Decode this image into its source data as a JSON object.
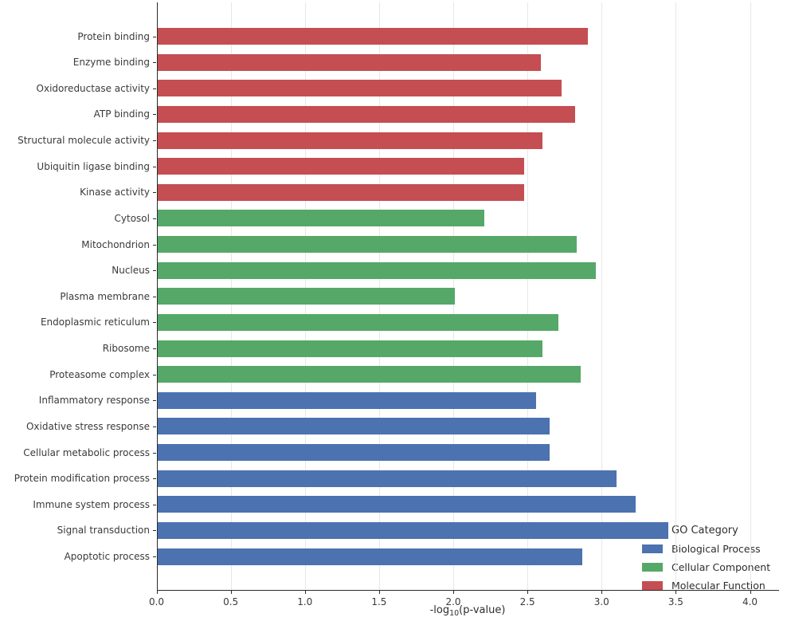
{
  "chart_data": {
    "type": "bar",
    "orientation": "horizontal",
    "xlabel": "-log10(p-value)",
    "xlabel_parts": {
      "prefix": "-log",
      "sub": "10",
      "suffix": "(p-value)"
    },
    "xlim": [
      0,
      4.2
    ],
    "xtick_labels": [
      "0.0",
      "0.5",
      "1.0",
      "1.5",
      "2.0",
      "2.5",
      "3.0",
      "3.5",
      "4.0"
    ],
    "xtick_values": [
      0.0,
      0.5,
      1.0,
      1.5,
      2.0,
      2.5,
      3.0,
      3.5,
      4.0
    ],
    "grid": true,
    "legend": {
      "title": "GO Category",
      "position": "lower right",
      "entries": [
        {
          "label": "Biological Process",
          "color": "#4C72B0"
        },
        {
          "label": "Cellular Component",
          "color": "#55A868"
        },
        {
          "label": "Molecular Function",
          "color": "#C44E52"
        }
      ]
    },
    "group_colors": {
      "Biological Process": "#4C72B0",
      "Cellular Component": "#55A868",
      "Molecular Function": "#C44E52"
    },
    "bars": [
      {
        "label": "Protein binding",
        "group": "Molecular Function",
        "value": 2.91
      },
      {
        "label": "Enzyme binding",
        "group": "Molecular Function",
        "value": 2.59
      },
      {
        "label": "Oxidoreductase activity",
        "group": "Molecular Function",
        "value": 2.73
      },
      {
        "label": "ATP binding",
        "group": "Molecular Function",
        "value": 2.82
      },
      {
        "label": "Structural molecule activity",
        "group": "Molecular Function",
        "value": 2.6
      },
      {
        "label": "Ubiquitin ligase binding",
        "group": "Molecular Function",
        "value": 2.48
      },
      {
        "label": "Kinase activity",
        "group": "Molecular Function",
        "value": 2.48
      },
      {
        "label": "Cytosol",
        "group": "Cellular Component",
        "value": 2.21
      },
      {
        "label": "Mitochondrion",
        "group": "Cellular Component",
        "value": 2.83
      },
      {
        "label": "Nucleus",
        "group": "Cellular Component",
        "value": 2.96
      },
      {
        "label": "Plasma membrane",
        "group": "Cellular Component",
        "value": 2.01
      },
      {
        "label": "Endoplasmic reticulum",
        "group": "Cellular Component",
        "value": 2.71
      },
      {
        "label": "Ribosome",
        "group": "Cellular Component",
        "value": 2.6
      },
      {
        "label": "Proteasome complex",
        "group": "Cellular Component",
        "value": 2.86
      },
      {
        "label": "Inflammatory response",
        "group": "Biological Process",
        "value": 2.56
      },
      {
        "label": "Oxidative stress response",
        "group": "Biological Process",
        "value": 2.65
      },
      {
        "label": "Cellular metabolic process",
        "group": "Biological Process",
        "value": 2.65
      },
      {
        "label": "Protein modification process",
        "group": "Biological Process",
        "value": 3.1
      },
      {
        "label": "Immune system process",
        "group": "Biological Process",
        "value": 3.23
      },
      {
        "label": "Signal transduction",
        "group": "Biological Process",
        "value": 3.45
      },
      {
        "label": "Apoptotic process",
        "group": "Biological Process",
        "value": 2.87
      }
    ]
  }
}
